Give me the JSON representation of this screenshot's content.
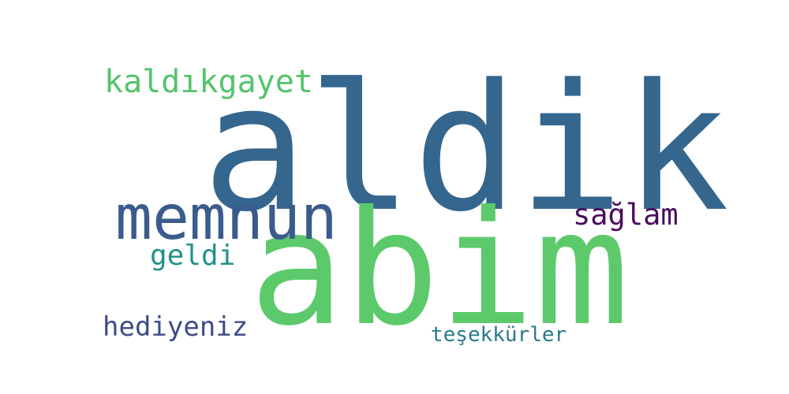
{
  "word_cloud": {
    "words": [
      {
        "id": "aldik",
        "text": "aldik",
        "color": "#35668e"
      },
      {
        "id": "abim",
        "text": "abim",
        "color": "#5cca6b"
      },
      {
        "id": "memnun",
        "text": "memnun",
        "color": "#3c5b8d"
      },
      {
        "id": "kaldikgayet",
        "text": "kaldıkgayet",
        "color": "#54c36c"
      },
      {
        "id": "saglam",
        "text": "sağlam",
        "color": "#4a0c5e"
      },
      {
        "id": "geldi",
        "text": "geldi",
        "color": "#24918a"
      },
      {
        "id": "hediyeniz",
        "text": "hediyeniz",
        "color": "#3d4b88"
      },
      {
        "id": "tesekkurler",
        "text": "teşekkürler",
        "color": "#2a7a8b"
      }
    ]
  }
}
